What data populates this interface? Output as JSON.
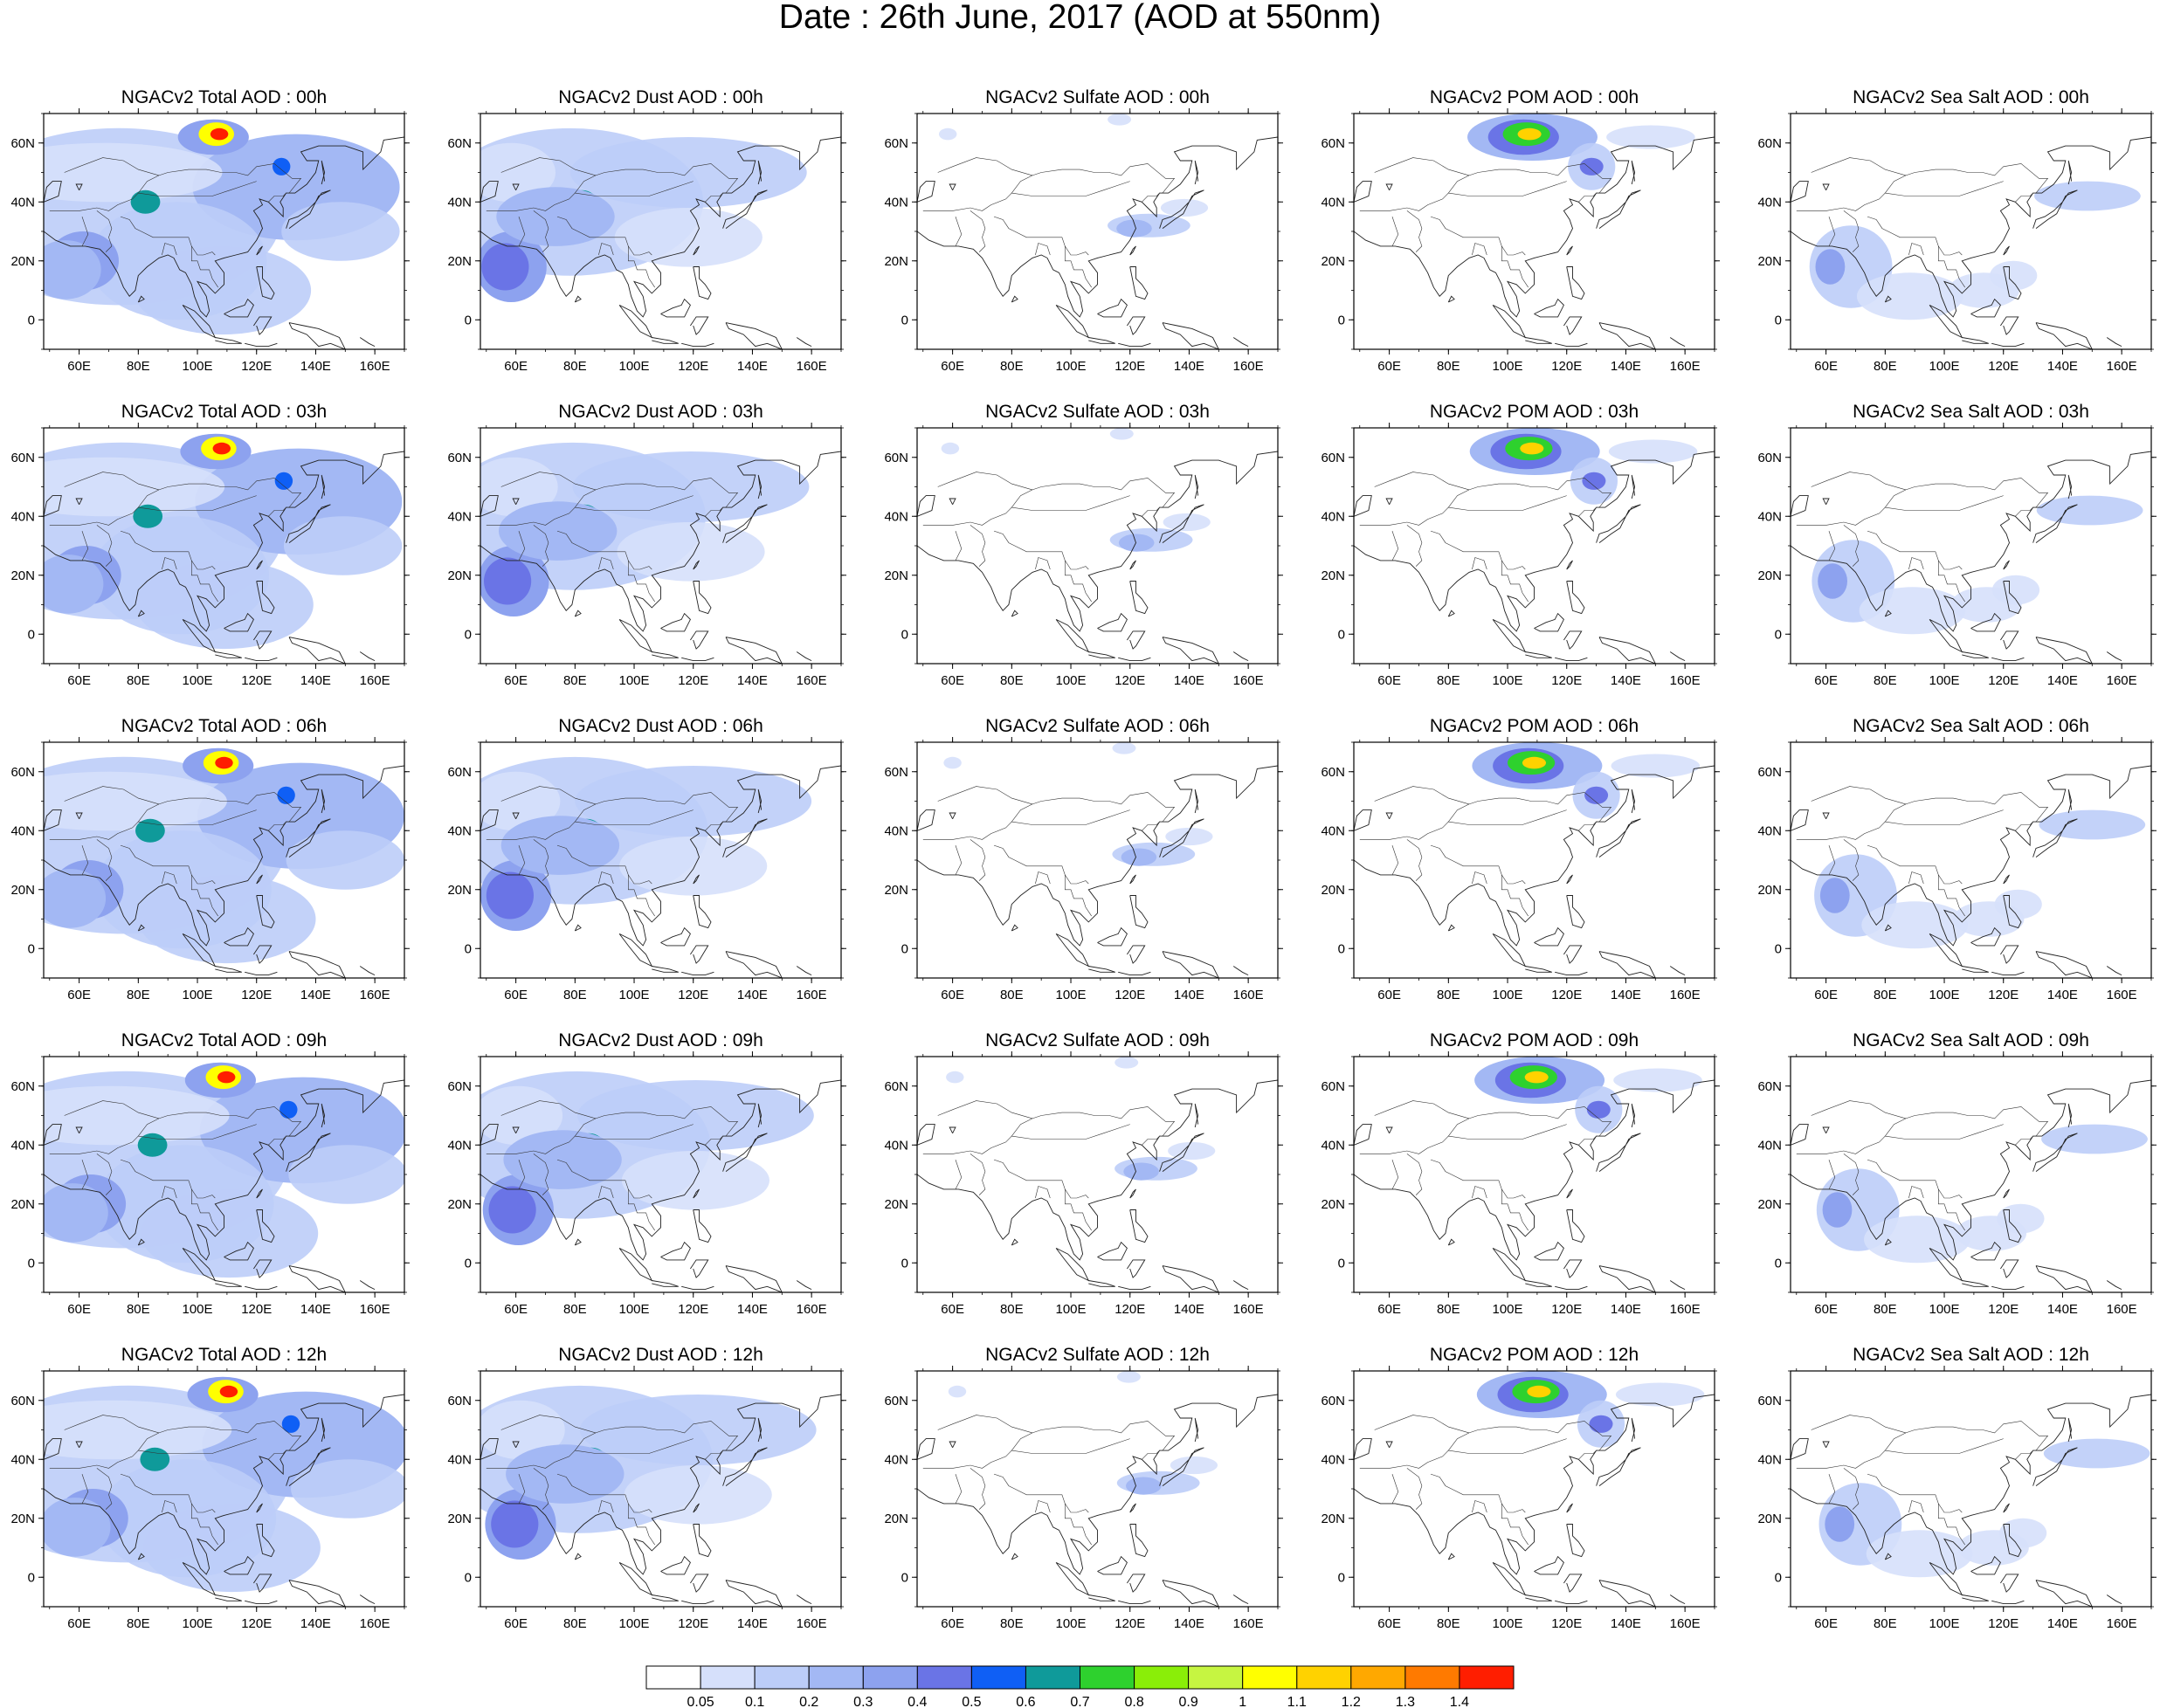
{
  "title": "Date : 26th June, 2017 (AOD at 550nm)",
  "x_ticks": [
    "60E",
    "80E",
    "100E",
    "120E",
    "140E",
    "160E"
  ],
  "y_ticks": [
    "60N",
    "40N",
    "20N",
    "0"
  ],
  "panels": [
    [
      "NGACv2 Total AOD : 00h",
      "NGACv2 Dust AOD : 00h",
      "NGACv2 Sulfate AOD : 00h",
      "NGACv2 POM AOD : 00h",
      "NGACv2 Sea Salt AOD : 00h"
    ],
    [
      "NGACv2 Total AOD : 03h",
      "NGACv2 Dust AOD : 03h",
      "NGACv2 Sulfate AOD : 03h",
      "NGACv2 POM AOD : 03h",
      "NGACv2 Sea Salt AOD : 03h"
    ],
    [
      "NGACv2 Total AOD : 06h",
      "NGACv2 Dust AOD : 06h",
      "NGACv2 Sulfate AOD : 06h",
      "NGACv2 POM AOD : 06h",
      "NGACv2 Sea Salt AOD : 06h"
    ],
    [
      "NGACv2 Total AOD : 09h",
      "NGACv2 Dust AOD : 09h",
      "NGACv2 Sulfate AOD : 09h",
      "NGACv2 POM AOD : 09h",
      "NGACv2 Sea Salt  AOD : 09h"
    ],
    [
      "NGACv2 Total AOD  : 12h",
      "NGACv2 Dust AOD : 12h",
      "NGACv2 Sulfate AOD : 12h",
      "NGACv2 POM  AOD : 12h",
      "NGACv2 Sea Salt  AOD : 12h"
    ]
  ],
  "colorbar": {
    "labels": [
      "0.05",
      "0.1",
      "0.2",
      "0.3",
      "0.4",
      "0.5",
      "0.6",
      "0.7",
      "0.8",
      "0.9",
      "1",
      "1.1",
      "1.2",
      "1.3",
      "1.4"
    ],
    "colors": [
      "#ffffff",
      "#d6e0fb",
      "#bccdf8",
      "#a3b8f4",
      "#8da2ef",
      "#6a74e6",
      "#0f5ff5",
      "#0f9a9a",
      "#2ed12e",
      "#8aee08",
      "#c6f541",
      "#ffff00",
      "#ffd200",
      "#ffa800",
      "#ff7a00",
      "#ff1e00"
    ]
  }
}
